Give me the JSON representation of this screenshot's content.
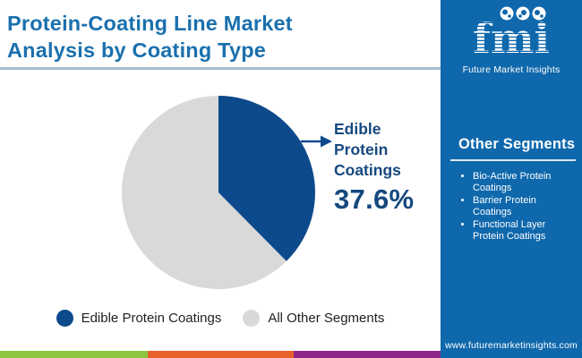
{
  "header": {
    "title_line1": "Protein-Coating Line Market",
    "title_line2": "Analysis by Coating Type"
  },
  "logo": {
    "letters": "fmi",
    "tagline": "Future Market Insights"
  },
  "sidebar": {
    "heading": "Other Segments",
    "items": [
      "Bio-Active Protein Coatings",
      "Barrier Protein Coatings",
      "Functional Layer Protein Coatings"
    ],
    "website": "www.futuremarketinsights.com"
  },
  "callout": {
    "label_lines": [
      "Edible",
      "Protein",
      "Coatings"
    ],
    "value": "37.6%"
  },
  "legend": {
    "items": [
      {
        "label": "Edible Protein Coatings",
        "color": "#0d4a8c"
      },
      {
        "label": "All Other Segments",
        "color": "#d9d9d9"
      }
    ]
  },
  "footer": {
    "stripe_colors": [
      "#8cc63f",
      "#e8612b",
      "#8e2789"
    ]
  },
  "colors": {
    "title": "#1a70ad",
    "sidebar": "#0f68ac",
    "pie_blue": "#0d4a8c",
    "pie_gray": "#d9d9d9",
    "callout_text": "#15497f"
  },
  "chart_data": {
    "type": "pie",
    "title": "Protein-Coating Line Market Analysis by Coating Type",
    "slices": [
      {
        "label": "Edible Protein Coatings",
        "value": 37.6,
        "color": "#0d4a8c"
      },
      {
        "label": "All Other Segments",
        "value": 62.4,
        "color": "#d9d9d9"
      }
    ],
    "start_angle": "top",
    "direction": "clockwise",
    "annotation": "Edible Protein Coatings 37.6%",
    "legend_position": "bottom"
  }
}
